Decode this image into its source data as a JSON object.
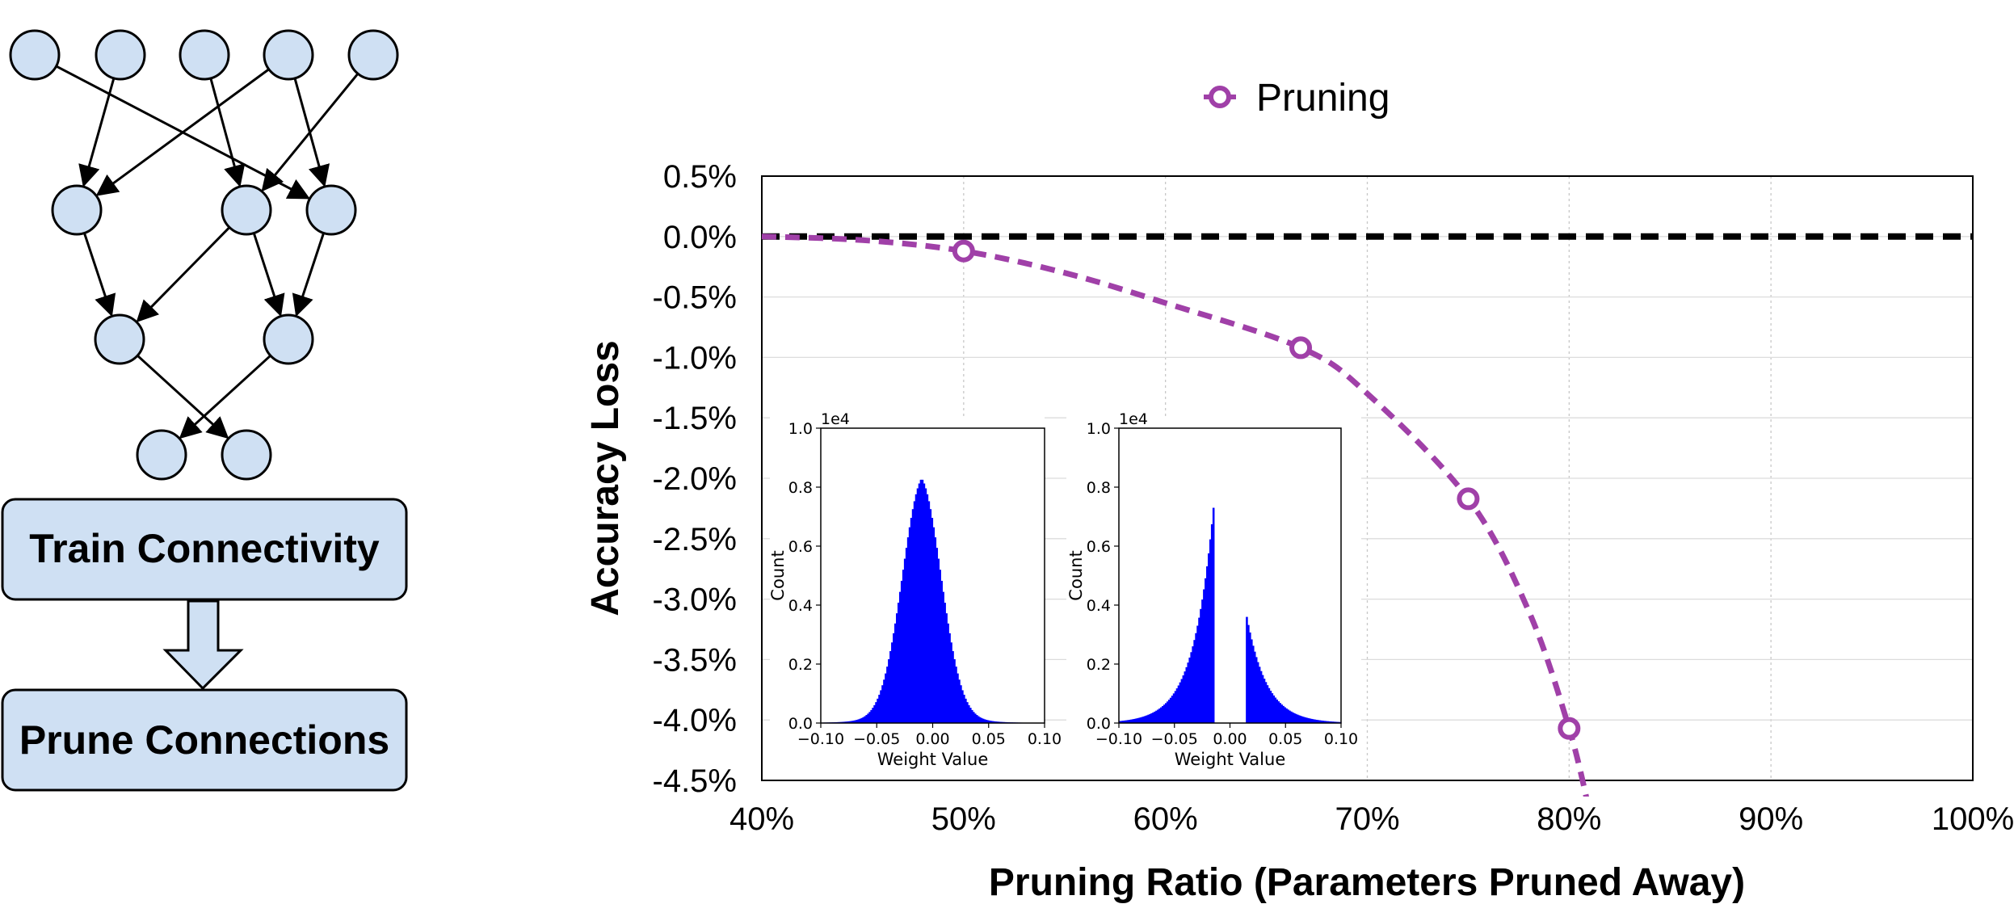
{
  "diagram": {
    "layers": [
      5,
      3,
      2,
      2
    ],
    "node_fill": "#cfe0f3",
    "train_label": "Train Connectivity",
    "prune_label": "Prune Connections"
  },
  "chart_data": [
    {
      "type": "line",
      "title": "",
      "xlabel": "Pruning Ratio (Parameters Pruned Away)",
      "ylabel": "Accuracy Loss",
      "xlim": [
        40,
        100
      ],
      "ylim": [
        -4.5,
        0.5
      ],
      "x_ticks": [
        40,
        50,
        60,
        70,
        80,
        90,
        100
      ],
      "x_tick_labels": [
        "40%",
        "50%",
        "60%",
        "70%",
        "80%",
        "90%",
        "100%"
      ],
      "y_ticks": [
        0.5,
        0.0,
        -0.5,
        -1.0,
        -1.5,
        -2.0,
        -2.5,
        -3.0,
        -3.5,
        -4.0,
        -4.5
      ],
      "y_tick_labels": [
        "0.5%",
        "0.0%",
        "-0.5%",
        "-1.0%",
        "-1.5%",
        "-2.0%",
        "-2.5%",
        "-3.0%",
        "-3.5%",
        "-4.0%",
        "-4.5%"
      ],
      "grid": true,
      "legend": "top-center",
      "series": [
        {
          "name": "Pruning",
          "color": "#a040a8",
          "style": "dashed",
          "x": [
            50,
            66.7,
            75,
            80
          ],
          "y": [
            -0.12,
            -0.92,
            -2.17,
            -4.07
          ],
          "curve_x": [
            40,
            45,
            50,
            55,
            60,
            66.7,
            70,
            75,
            78,
            80,
            81
          ],
          "curve_y": [
            0.0,
            -0.03,
            -0.12,
            -0.3,
            -0.55,
            -0.92,
            -1.3,
            -2.17,
            -3.1,
            -4.07,
            -4.75
          ]
        },
        {
          "name": "baseline",
          "color": "#000000",
          "style": "dashed",
          "x": [
            40,
            100
          ],
          "y": [
            0.0,
            0.0
          ]
        }
      ]
    },
    {
      "type": "bar",
      "title": "",
      "xlabel": "Weight Value",
      "ylabel": "Count",
      "scale_label": "1e4",
      "xlim": [
        -0.1,
        0.1
      ],
      "ylim": [
        0,
        1.0
      ],
      "x_tick_labels": [
        "−0.10",
        "−0.05",
        "0.00",
        "0.05",
        "0.10"
      ],
      "y_tick_labels": [
        "0.0",
        "0.2",
        "0.4",
        "0.6",
        "0.8",
        "1.0"
      ],
      "color": "#0000ff",
      "distribution": {
        "center": -0.01,
        "peak": 0.83,
        "sigma": 0.018,
        "tail": 0.045
      }
    },
    {
      "type": "bar",
      "title": "",
      "xlabel": "Weight Value",
      "ylabel": "Count",
      "scale_label": "1e4",
      "xlim": [
        -0.1,
        0.1
      ],
      "ylim": [
        0,
        1.0
      ],
      "x_tick_labels": [
        "−0.10",
        "−0.05",
        "0.00",
        "0.05",
        "0.10"
      ],
      "y_tick_labels": [
        "0.0",
        "0.2",
        "0.4",
        "0.6",
        "0.8",
        "1.0"
      ],
      "color": "#0000ff",
      "distribution": {
        "left_peak_x": -0.015,
        "left_peak": 0.73,
        "right_peak_x": 0.015,
        "right_peak": 0.36,
        "gap": [
          -0.015,
          0.015
        ],
        "decay": 0.018
      }
    }
  ]
}
